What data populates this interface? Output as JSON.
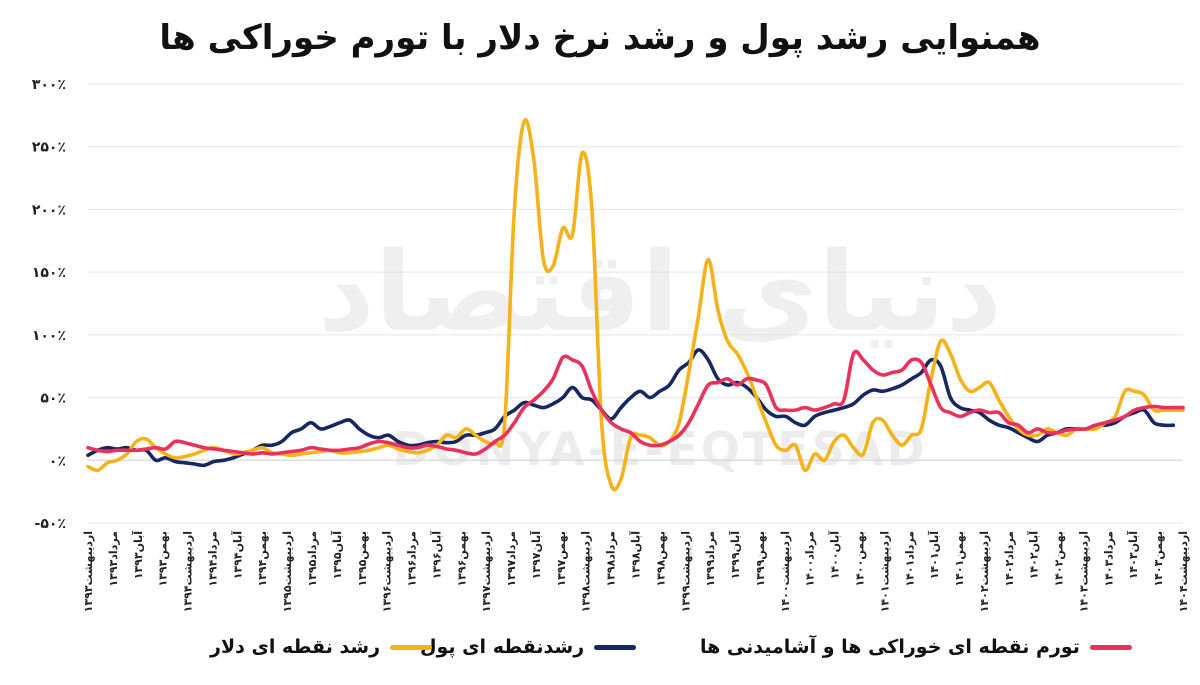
{
  "chart_data": {
    "type": "line",
    "title": "همنوایی رشد پول و رشد نرخ دلار با تورم خوراکی ها",
    "xlabel": "",
    "ylabel": "",
    "ylim": [
      -50,
      300
    ],
    "yticks": [
      {
        "value": -50,
        "label": "-۵۰٪"
      },
      {
        "value": 0,
        "label": "۰٪"
      },
      {
        "value": 50,
        "label": "۵۰٪"
      },
      {
        "value": 100,
        "label": "۱۰۰٪"
      },
      {
        "value": 150,
        "label": "۱۵۰٪"
      },
      {
        "value": 200,
        "label": "۲۰۰٪"
      },
      {
        "value": 250,
        "label": "۲۵۰٪"
      },
      {
        "value": 300,
        "label": "۳۰۰٪"
      }
    ],
    "grid": true,
    "legend_position": "bottom",
    "x_tick_labels": [
      "اردیبهشت۱۳۹۳",
      "مرداد۱۳۹۳",
      "آبان۱۳۹۳",
      "بهمن۱۳۹۳",
      "اردیبهشت۱۳۹۴",
      "مرداد۱۳۹۴",
      "آبان۱۳۹۴",
      "بهمن۱۳۹۴",
      "اردیبهشت۱۳۹۵",
      "مرداد۱۳۹۵",
      "آبان۱۳۹۵",
      "بهمن۱۳۹۵",
      "اردیبهشت۱۳۹۶",
      "مرداد۱۳۹۶",
      "آبان۱۳۹۶",
      "بهمن۱۳۹۶",
      "اردیبهشت۱۳۹۷",
      "مرداد۱۳۹۷",
      "آبان۱۳۹۷",
      "بهمن۱۳۹۷",
      "اردیبهشت۱۳۹۸",
      "مرداد۱۳۹۸",
      "آبان۱۳۹۸",
      "بهمن۱۳۹۸",
      "اردیبهشت۱۳۹۹",
      "مرداد۱۳۹۹",
      "آبان۱۳۹۹",
      "بهمن۱۳۹۹",
      "اردیبهشت۱۴۰۰",
      "مرداد۱۴۰۰",
      "آبان۱۴۰۰",
      "بهمن۱۴۰۰",
      "اردیبهشت۱۴۰۱",
      "مرداد۱۴۰۱",
      "آبان۱۴۰۱",
      "بهمن۱۴۰۱",
      "اردیبهشت۱۴۰۲",
      "مرداد۱۴۰۲",
      "آبان۱۴۰۲",
      "بهمن۱۴۰۲",
      "اردیبهشت۱۴۰۳",
      "مرداد۱۴۰۳",
      "آبان۱۴۰۳",
      "بهمن۱۴۰۳",
      "اردیبهشت۱۴۰۴"
    ],
    "series": [
      {
        "name": "رشد نقطه ای دلار",
        "color": "#F5B21A",
        "values": [
          -5,
          -8,
          -2,
          0,
          5,
          15,
          17,
          10,
          5,
          2,
          3,
          5,
          8,
          10,
          8,
          5,
          6,
          8,
          10,
          6,
          5,
          4,
          5,
          6,
          7,
          8,
          6,
          6,
          7,
          8,
          10,
          12,
          9,
          7,
          6,
          8,
          12,
          20,
          18,
          25,
          20,
          15,
          14,
          30,
          200,
          270,
          240,
          160,
          155,
          185,
          180,
          245,
          200,
          30,
          -20,
          -15,
          18,
          20,
          18,
          12,
          15,
          30,
          70,
          115,
          160,
          120,
          95,
          85,
          70,
          50,
          30,
          12,
          8,
          12,
          -8,
          5,
          0,
          15,
          20,
          10,
          5,
          30,
          32,
          20,
          12,
          20,
          25,
          65,
          95,
          85,
          65,
          55,
          58,
          62,
          48,
          35,
          25,
          20,
          20,
          25,
          22,
          20,
          25,
          25,
          25,
          30,
          35,
          55,
          55,
          52,
          40,
          40,
          40,
          40
        ]
      },
      {
        "name": "رشدنقطه ای پول",
        "color": "#172760",
        "values": [
          4,
          8,
          10,
          9,
          10,
          8,
          8,
          0,
          2,
          -1,
          -2,
          -3,
          -4,
          -1,
          0,
          2,
          5,
          8,
          12,
          12,
          15,
          22,
          25,
          30,
          25,
          27,
          30,
          32,
          25,
          20,
          18,
          20,
          15,
          12,
          12,
          14,
          15,
          14,
          15,
          20,
          20,
          22,
          25,
          35,
          40,
          46,
          44,
          42,
          45,
          50,
          58,
          50,
          48,
          40,
          33,
          42,
          50,
          55,
          50,
          55,
          60,
          72,
          78,
          88,
          80,
          65,
          60,
          62,
          58,
          50,
          40,
          35,
          35,
          30,
          28,
          35,
          38,
          40,
          42,
          45,
          52,
          56,
          55,
          57,
          60,
          65,
          70,
          80,
          75,
          50,
          42,
          40,
          38,
          32,
          28,
          26,
          22,
          18,
          15,
          20,
          22,
          25,
          25,
          25,
          28,
          28,
          30,
          35,
          38,
          40,
          30,
          28,
          28
        ]
      },
      {
        "name": "تورم نقطه ای خوراکی ها و آشامیدنی ها",
        "color": "#E9315E",
        "values": [
          10,
          8,
          7,
          8,
          8,
          8,
          9,
          10,
          9,
          15,
          14,
          12,
          10,
          9,
          8,
          7,
          6,
          5,
          6,
          5,
          6,
          7,
          8,
          10,
          9,
          8,
          8,
          9,
          10,
          13,
          15,
          14,
          12,
          10,
          10,
          12,
          11,
          9,
          8,
          6,
          5,
          9,
          15,
          20,
          30,
          42,
          48,
          55,
          65,
          82,
          80,
          75,
          55,
          40,
          30,
          25,
          22,
          15,
          12,
          12,
          15,
          20,
          30,
          45,
          60,
          62,
          65,
          60,
          65,
          64,
          60,
          42,
          40,
          40,
          42,
          40,
          42,
          45,
          48,
          85,
          80,
          72,
          68,
          70,
          72,
          80,
          78,
          60,
          42,
          38,
          35,
          38,
          40,
          38,
          38,
          30,
          28,
          22,
          25,
          22,
          22,
          24,
          25,
          25,
          28,
          30,
          32,
          35,
          40,
          42,
          43,
          42,
          42,
          42
        ]
      }
    ]
  },
  "watermark": {
    "arabic": "دنیای اقتصاد",
    "latin": "DONYA-E-EQTESAD"
  }
}
